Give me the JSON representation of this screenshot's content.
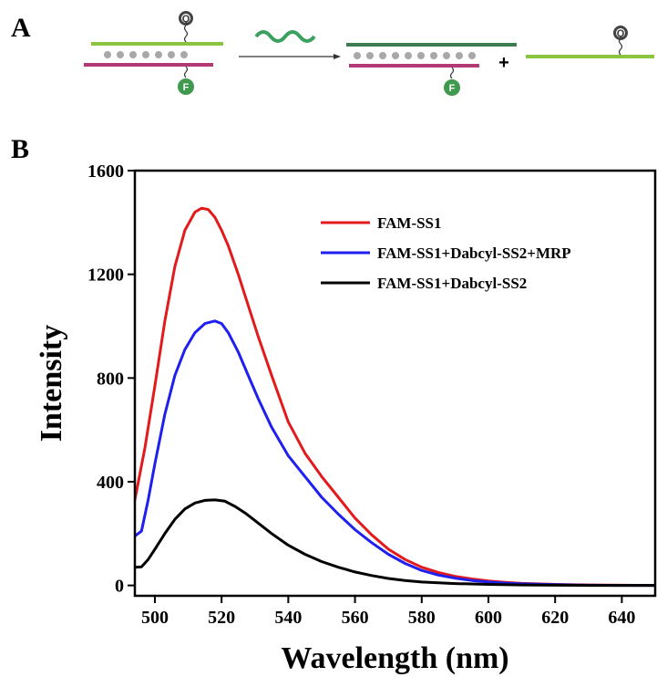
{
  "panel_a": {
    "label": "A",
    "quencher_badge": "Q",
    "fluor_badge": "F",
    "plus_sign": "+",
    "colors": {
      "ss2_strand": "#8bc53f",
      "ss1_strand": "#b23a74",
      "product_strand": "#3b7d4f",
      "bead": "#a8a8a8",
      "quencher": "#444444",
      "fluor": "#3f9a4f",
      "wave": "#3aa060",
      "arrow": "#333333"
    }
  },
  "panel_b": {
    "label": "B"
  },
  "chart_data": {
    "type": "line",
    "title": "",
    "xlabel": "Wavelength (nm)",
    "ylabel": "Intensity",
    "xlim": [
      494,
      650
    ],
    "ylim": [
      -40,
      1600
    ],
    "xticks": [
      500,
      520,
      540,
      560,
      580,
      600,
      620,
      640
    ],
    "yticks": [
      0,
      400,
      800,
      1200,
      1600
    ],
    "legend_position": "top-right",
    "grid": false,
    "series": [
      {
        "name": "FAM-SS1",
        "color": "#e31a1c",
        "x": [
          494,
          497,
          500,
          503,
          506,
          509,
          512,
          514,
          516,
          518,
          520,
          522,
          525,
          528,
          531,
          535,
          540,
          545,
          550,
          555,
          560,
          565,
          570,
          575,
          580,
          585,
          590,
          595,
          600,
          605,
          610,
          620,
          630,
          640,
          650
        ],
        "y": [
          330,
          530,
          770,
          1020,
          1230,
          1370,
          1440,
          1455,
          1450,
          1420,
          1370,
          1310,
          1200,
          1080,
          960,
          810,
          630,
          510,
          420,
          340,
          260,
          195,
          140,
          100,
          70,
          50,
          35,
          25,
          17,
          12,
          8,
          4,
          2,
          1,
          0
        ]
      },
      {
        "name": "FAM-SS1+Dabcyl-SS2+MRP",
        "color": "#1f1ff0",
        "x": [
          494,
          496,
          498,
          500,
          503,
          506,
          509,
          512,
          515,
          518,
          520,
          522,
          525,
          528,
          531,
          535,
          540,
          545,
          550,
          555,
          560,
          565,
          570,
          575,
          580,
          585,
          590,
          595,
          600,
          605,
          610,
          620,
          630,
          640,
          650
        ],
        "y": [
          190,
          210,
          330,
          470,
          660,
          810,
          910,
          975,
          1010,
          1020,
          1010,
          975,
          900,
          810,
          720,
          610,
          500,
          420,
          340,
          275,
          215,
          165,
          120,
          85,
          58,
          40,
          28,
          19,
          13,
          9,
          6,
          3,
          1,
          0,
          0
        ],
        "note_name": "FAM-SS1+Dabcyl-SS2+MRP"
      },
      {
        "name": "FAM-SS1+Dabcyl-SS2",
        "color": "#000000",
        "x": [
          494,
          496,
          498,
          500,
          503,
          506,
          509,
          512,
          515,
          518,
          521,
          524,
          527,
          530,
          535,
          540,
          545,
          550,
          555,
          560,
          565,
          570,
          575,
          580,
          590,
          600,
          610,
          620,
          630,
          640,
          650
        ],
        "y": [
          70,
          72,
          100,
          140,
          200,
          255,
          295,
          318,
          328,
          330,
          325,
          305,
          280,
          250,
          200,
          155,
          120,
          92,
          70,
          52,
          38,
          27,
          19,
          13,
          7,
          4,
          2,
          1,
          0,
          0,
          0
        ]
      }
    ]
  }
}
